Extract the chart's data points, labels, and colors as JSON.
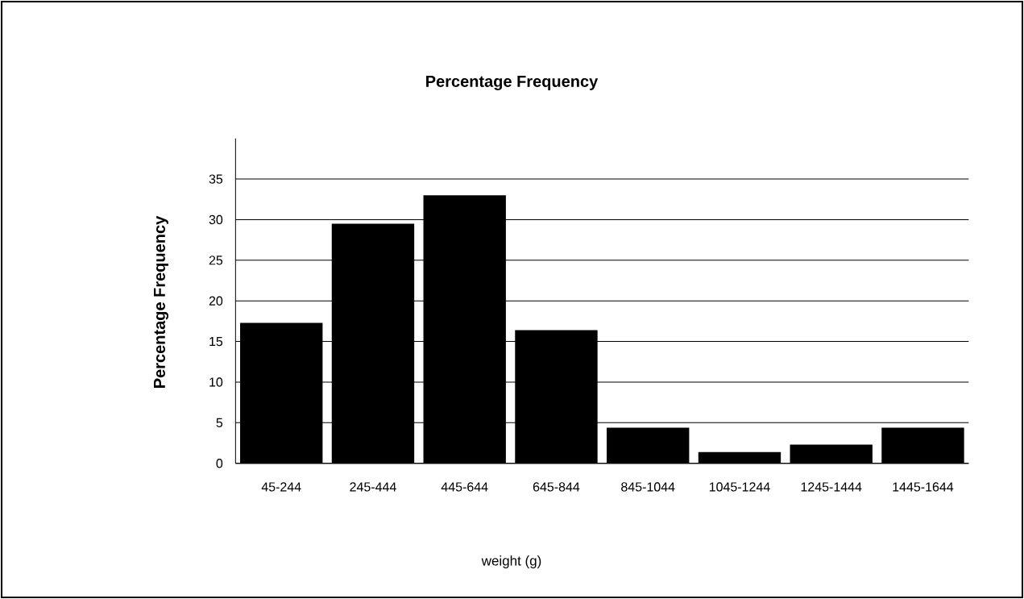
{
  "chart_data": {
    "type": "bar",
    "title": "Percentage Frequency",
    "xlabel": "weight (g)",
    "ylabel": "Percentage Frequency",
    "categories": [
      "45-244",
      "245-444",
      "445-644",
      "645-844",
      "845-1044",
      "1045-1244",
      "1245-1444",
      "1445-1644"
    ],
    "values": [
      17.3,
      29.5,
      33.0,
      16.4,
      4.4,
      1.4,
      2.3,
      4.4
    ],
    "color": "#000000",
    "ylim": [
      0,
      40
    ],
    "yticks": [
      0,
      5,
      10,
      15,
      20,
      25,
      30,
      35
    ],
    "grid": "y"
  }
}
